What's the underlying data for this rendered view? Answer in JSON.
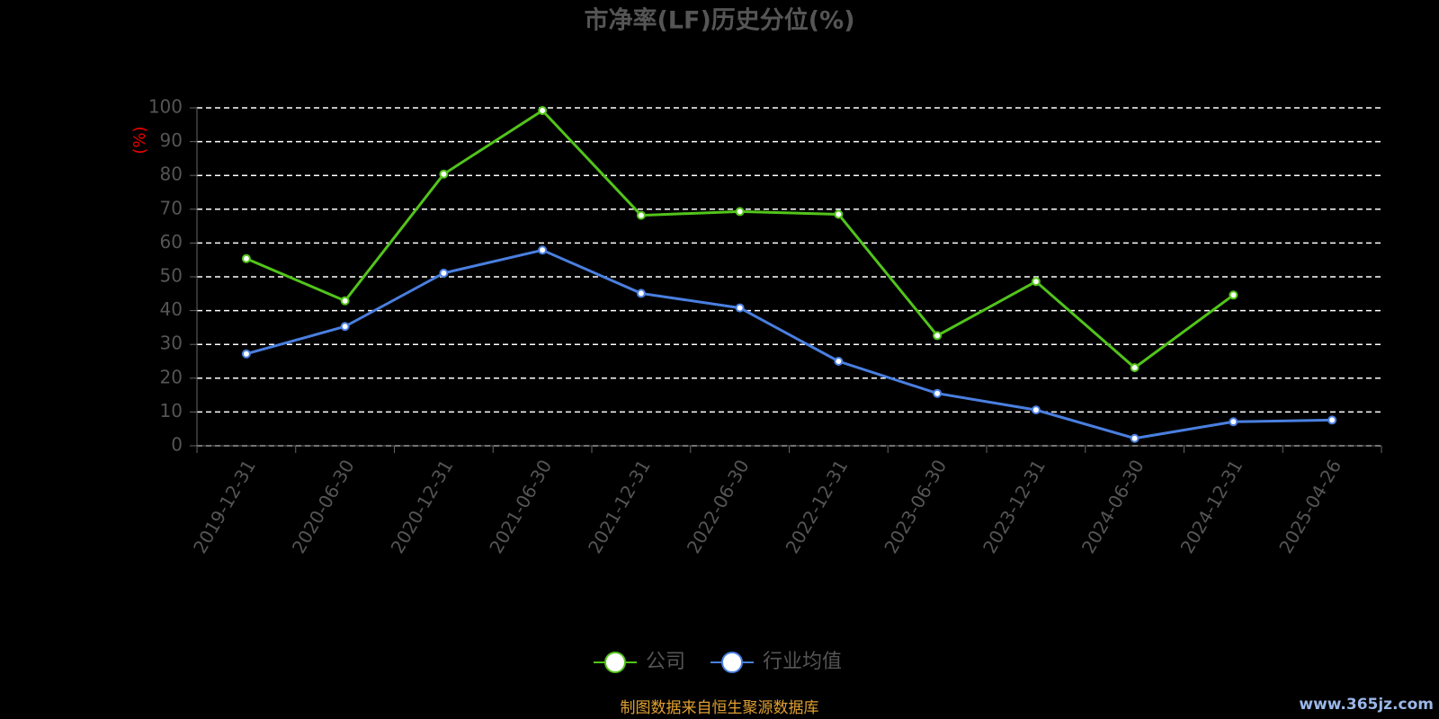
{
  "chart_data": {
    "type": "line",
    "title": "市净率(LF)历史分位(%)",
    "y_label": "(%)",
    "categories": [
      "2019-12-31",
      "2020-06-30",
      "2020-12-31",
      "2021-06-30",
      "2021-12-31",
      "2022-06-30",
      "2022-12-31",
      "2023-06-30",
      "2023-12-31",
      "2024-06-30",
      "2024-12-31",
      "2025-04-26"
    ],
    "series": [
      {
        "name": "公司",
        "color": "#52c41a",
        "values": [
          55.4,
          42.9,
          80.4,
          99.2,
          68.2,
          69.3,
          68.5,
          32.6,
          48.6,
          23.1,
          44.6,
          null
        ]
      },
      {
        "name": "行业均值",
        "color": "#4a7fe0",
        "values": [
          27.2,
          35.3,
          51.1,
          57.9,
          45.1,
          40.8,
          25.0,
          15.5,
          10.6,
          2.2,
          7.1,
          7.6
        ]
      }
    ],
    "ylim": [
      0,
      100
    ],
    "yticks": [
      0,
      10,
      20,
      30,
      40,
      50,
      60,
      70,
      80,
      90,
      100
    ],
    "grid": true,
    "footer": "制图数据来自恒生聚源数据库",
    "watermark": "www.365jz.com"
  }
}
